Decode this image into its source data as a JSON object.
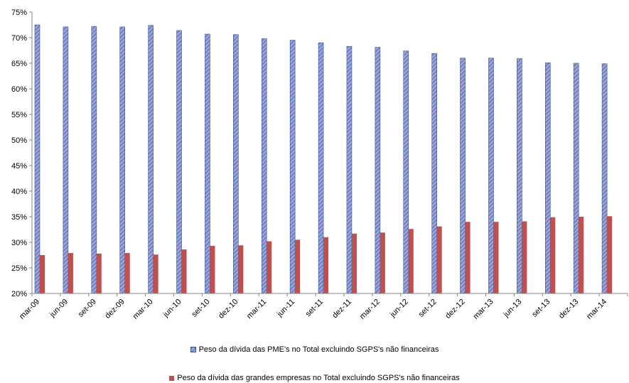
{
  "chart_data": {
    "type": "bar",
    "categories": [
      "mar-09",
      "jun-09",
      "set-09",
      "dez-09",
      "mar-10",
      "jun-10",
      "set-10",
      "dez-10",
      "mar-11",
      "jun-11",
      "set-11",
      "dez-11",
      "mar-12",
      "jun-12",
      "set-12",
      "dez-12",
      "mar-13",
      "jun-13",
      "set-13",
      "dez-13",
      "mar-14"
    ],
    "series": [
      {
        "name": "Peso da dívida das PME's no Total excluindo SGPS's não financeiras",
        "color": "#4f81bd",
        "pattern": "diagonal-stripes",
        "values": [
          72.5,
          72.1,
          72.2,
          72.1,
          72.4,
          71.4,
          70.7,
          70.6,
          69.8,
          69.5,
          69.0,
          68.3,
          68.1,
          67.4,
          66.9,
          66.0,
          66.0,
          65.9,
          65.1,
          65.0,
          64.9
        ]
      },
      {
        "name": "Peso da dívida das grandes empresas no Total excluindo SGPS's não financeiras",
        "color": "#c0504d",
        "values": [
          27.5,
          27.9,
          27.8,
          27.9,
          27.6,
          28.6,
          29.3,
          29.4,
          30.2,
          30.5,
          31.0,
          31.7,
          31.9,
          32.6,
          33.1,
          34.0,
          34.0,
          34.1,
          34.9,
          35.0,
          35.1
        ]
      }
    ],
    "y_ticks": [
      "20%",
      "25%",
      "30%",
      "35%",
      "40%",
      "45%",
      "50%",
      "55%",
      "60%",
      "65%",
      "70%",
      "75%"
    ],
    "ylim": [
      20,
      75
    ],
    "grid": false,
    "legend_position": "bottom"
  }
}
